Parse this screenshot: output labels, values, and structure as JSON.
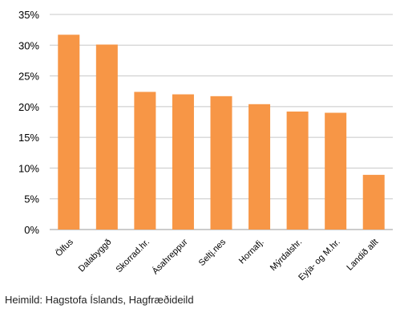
{
  "chart_data": {
    "type": "bar",
    "categories": [
      "Ölfus",
      "Dalabyggð",
      "Skorrad.hr.",
      "Ásahreppur",
      "Seltj.nes",
      "Hornafj.",
      "Mýrdalshr.",
      "Eyja- og M.hr.",
      "Landið allt"
    ],
    "values": [
      31.7,
      30.1,
      22.4,
      22.0,
      21.7,
      20.4,
      19.2,
      19.0,
      8.9
    ],
    "ylim": [
      0,
      35
    ],
    "yticks": [
      "0%",
      "5%",
      "10%",
      "15%",
      "20%",
      "25%",
      "30%",
      "35%"
    ],
    "grid": true,
    "bar_color": "#F79646"
  },
  "source": "Heimild: Hagstofa Íslands, Hagfræðideild"
}
